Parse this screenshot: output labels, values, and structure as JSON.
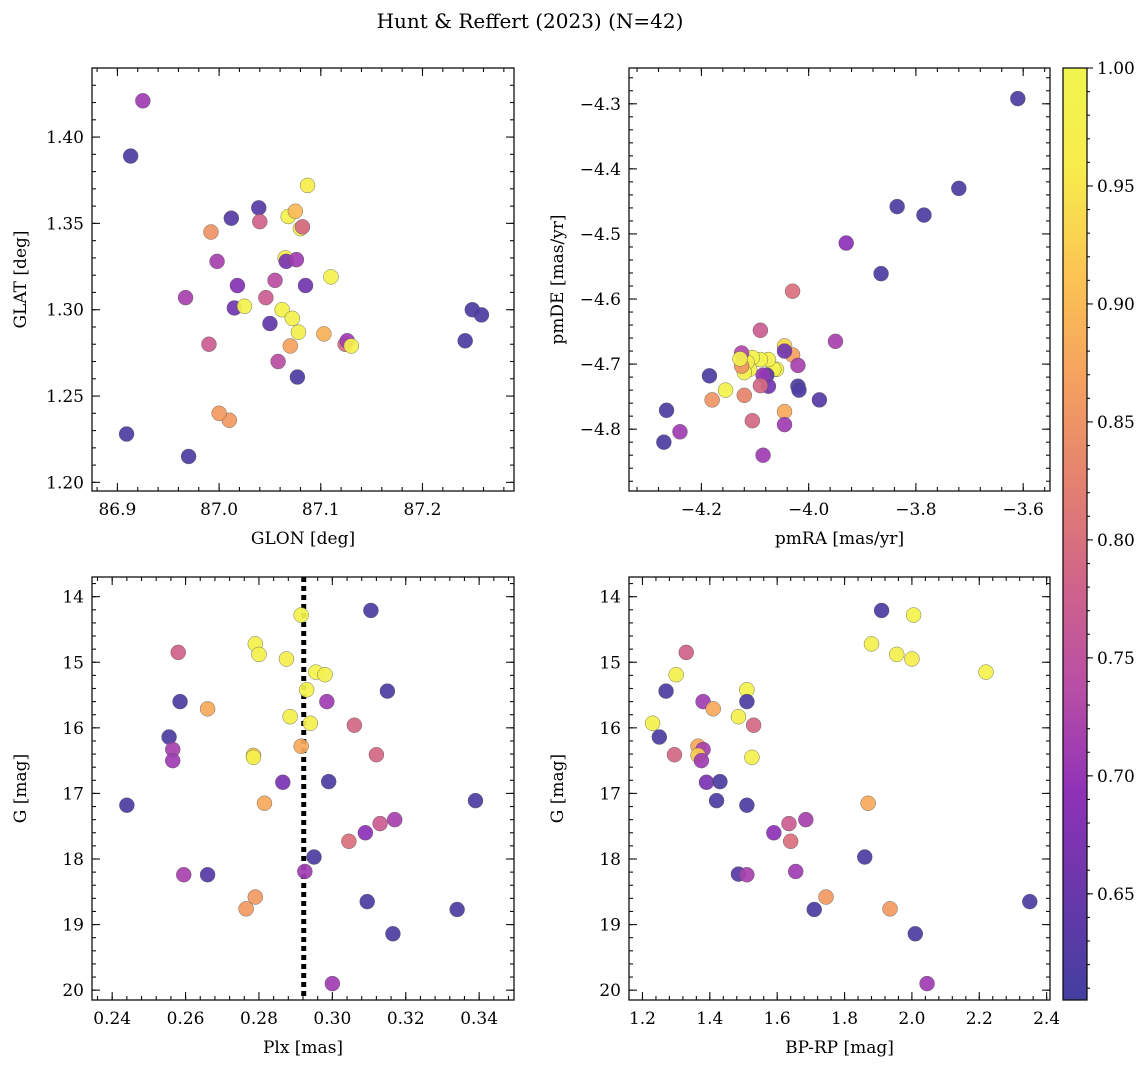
{
  "title": "Hunt & Reffert (2023) (N=42)",
  "colorbar": {
    "range": [
      0.605,
      1.0
    ],
    "tick_values": [
      0.65,
      0.7,
      0.75,
      0.8,
      0.85,
      0.9,
      0.95,
      1.0
    ],
    "tick_labels": [
      "0.65",
      "0.70",
      "0.75",
      "0.80",
      "0.85",
      "0.90",
      "0.95",
      "1.00"
    ],
    "colormap": "plasma",
    "colormap_stops": [
      "#423f9f",
      "#6838ab",
      "#8f32b8",
      "#b84ea6",
      "#d0638a",
      "#e4816f",
      "#f5a15f",
      "#fbc453",
      "#f7eb4c",
      "#f2f54e"
    ]
  },
  "chart_data": [
    {
      "type": "scatter",
      "xlabel": "GLON [deg]",
      "ylabel": "GLAT [deg]",
      "xlim": [
        86.875,
        87.29
      ],
      "ylim": [
        1.195,
        1.44
      ],
      "y_inverted": false,
      "xticks": [
        86.9,
        87.0,
        87.1,
        87.2
      ],
      "xtick_labels": [
        "86.9",
        "87.0",
        "87.1",
        "87.2"
      ],
      "xminor": 0.02,
      "yticks": [
        1.2,
        1.25,
        1.3,
        1.35,
        1.4
      ],
      "ytick_labels": [
        "1.20",
        "1.25",
        "1.30",
        "1.35",
        "1.40"
      ],
      "yminor": 0.01,
      "points": [
        {
          "x": 86.925,
          "y": 1.421,
          "c": 0.71
        },
        {
          "x": 86.913,
          "y": 1.389,
          "c": 0.62
        },
        {
          "x": 86.909,
          "y": 1.228,
          "c": 0.62
        },
        {
          "x": 86.97,
          "y": 1.215,
          "c": 0.62
        },
        {
          "x": 86.967,
          "y": 1.307,
          "c": 0.72
        },
        {
          "x": 86.99,
          "y": 1.28,
          "c": 0.77
        },
        {
          "x": 86.992,
          "y": 1.345,
          "c": 0.85
        },
        {
          "x": 86.998,
          "y": 1.328,
          "c": 0.72
        },
        {
          "x": 87.012,
          "y": 1.353,
          "c": 0.63
        },
        {
          "x": 87.015,
          "y": 1.301,
          "c": 0.66
        },
        {
          "x": 87.018,
          "y": 1.314,
          "c": 0.68
        },
        {
          "x": 87.01,
          "y": 1.236,
          "c": 0.86
        },
        {
          "x": 87.025,
          "y": 1.302,
          "c": 0.99
        },
        {
          "x": 87.039,
          "y": 1.359,
          "c": 0.63
        },
        {
          "x": 87.04,
          "y": 1.351,
          "c": 0.78
        },
        {
          "x": 87.046,
          "y": 1.307,
          "c": 0.77
        },
        {
          "x": 87.05,
          "y": 1.292,
          "c": 0.64
        },
        {
          "x": 87.055,
          "y": 1.317,
          "c": 0.74
        },
        {
          "x": 87.058,
          "y": 1.27,
          "c": 0.74
        },
        {
          "x": 87.062,
          "y": 1.3,
          "c": 0.99
        },
        {
          "x": 87.065,
          "y": 1.33,
          "c": 0.97
        },
        {
          "x": 87.066,
          "y": 1.328,
          "c": 0.67
        },
        {
          "x": 87.068,
          "y": 1.354,
          "c": 0.99
        },
        {
          "x": 87.07,
          "y": 1.279,
          "c": 0.87
        },
        {
          "x": 87.072,
          "y": 1.295,
          "c": 0.98
        },
        {
          "x": 87.075,
          "y": 1.357,
          "c": 0.9
        },
        {
          "x": 87.076,
          "y": 1.329,
          "c": 0.71
        },
        {
          "x": 87.077,
          "y": 1.261,
          "c": 0.62
        },
        {
          "x": 87.078,
          "y": 1.287,
          "c": 0.98
        },
        {
          "x": 87.08,
          "y": 1.347,
          "c": 0.98
        },
        {
          "x": 87.082,
          "y": 1.348,
          "c": 0.79
        },
        {
          "x": 87.085,
          "y": 1.314,
          "c": 0.66
        },
        {
          "x": 87.087,
          "y": 1.372,
          "c": 0.97
        },
        {
          "x": 87.103,
          "y": 1.286,
          "c": 0.89
        },
        {
          "x": 87.11,
          "y": 1.319,
          "c": 0.99
        },
        {
          "x": 87.124,
          "y": 1.28,
          "c": 0.79
        },
        {
          "x": 87.126,
          "y": 1.282,
          "c": 0.71
        },
        {
          "x": 87.13,
          "y": 1.279,
          "c": 0.98
        },
        {
          "x": 87.242,
          "y": 1.282,
          "c": 0.62
        },
        {
          "x": 87.249,
          "y": 1.3,
          "c": 0.62
        },
        {
          "x": 87.258,
          "y": 1.297,
          "c": 0.62
        },
        {
          "x": 87.0,
          "y": 1.24,
          "c": 0.86
        }
      ]
    },
    {
      "type": "scatter",
      "xlabel": "pmRA [mas/yr]",
      "ylabel": "pmDE [mas/yr]",
      "xlim": [
        -4.335,
        -3.55
      ],
      "ylim": [
        -4.895,
        -4.245
      ],
      "y_inverted": false,
      "xticks": [
        -4.2,
        -4.0,
        -3.8,
        -3.6
      ],
      "xtick_labels": [
        "−4.2",
        "−4.0",
        "−3.8",
        "−3.6"
      ],
      "xminor": 0.04,
      "yticks": [
        -4.8,
        -4.7,
        -4.6,
        -4.5,
        -4.4,
        -4.3
      ],
      "ytick_labels": [
        "−4.8",
        "−4.7",
        "−4.6",
        "−4.5",
        "−4.4",
        "−4.3"
      ],
      "yminor": 0.02,
      "points": [
        {
          "x": -3.61,
          "y": -4.292,
          "c": 0.62
        },
        {
          "x": -3.72,
          "y": -4.43,
          "c": 0.62
        },
        {
          "x": -3.785,
          "y": -4.471,
          "c": 0.62
        },
        {
          "x": -3.835,
          "y": -4.458,
          "c": 0.62
        },
        {
          "x": -3.865,
          "y": -4.561,
          "c": 0.62
        },
        {
          "x": -3.93,
          "y": -4.514,
          "c": 0.69
        },
        {
          "x": -3.95,
          "y": -4.665,
          "c": 0.72
        },
        {
          "x": -3.98,
          "y": -4.755,
          "c": 0.63
        },
        {
          "x": -4.03,
          "y": -4.588,
          "c": 0.8
        },
        {
          "x": -4.03,
          "y": -4.686,
          "c": 0.87
        },
        {
          "x": -4.02,
          "y": -4.702,
          "c": 0.72
        },
        {
          "x": -4.02,
          "y": -4.734,
          "c": 0.62
        },
        {
          "x": -4.018,
          "y": -4.74,
          "c": 0.62
        },
        {
          "x": -4.045,
          "y": -4.672,
          "c": 0.93
        },
        {
          "x": -4.045,
          "y": -4.68,
          "c": 0.66
        },
        {
          "x": -4.045,
          "y": -4.773,
          "c": 0.88
        },
        {
          "x": -4.045,
          "y": -4.793,
          "c": 0.71
        },
        {
          "x": -4.06,
          "y": -4.708,
          "c": 0.99
        },
        {
          "x": -4.065,
          "y": -4.708,
          "c": 0.98
        },
        {
          "x": -4.075,
          "y": -4.693,
          "c": 0.98
        },
        {
          "x": -4.078,
          "y": -4.717,
          "c": 0.63
        },
        {
          "x": -4.075,
          "y": -4.734,
          "c": 0.66
        },
        {
          "x": -4.085,
          "y": -4.717,
          "c": 0.7
        },
        {
          "x": -4.085,
          "y": -4.84,
          "c": 0.71
        },
        {
          "x": -4.09,
          "y": -4.648,
          "c": 0.77
        },
        {
          "x": -4.09,
          "y": -4.693,
          "c": 0.99
        },
        {
          "x": -4.09,
          "y": -4.733,
          "c": 0.79
        },
        {
          "x": -4.105,
          "y": -4.69,
          "c": 0.99
        },
        {
          "x": -4.105,
          "y": -4.787,
          "c": 0.79
        },
        {
          "x": -4.11,
          "y": -4.708,
          "c": 0.98
        },
        {
          "x": -4.115,
          "y": -4.697,
          "c": 0.97
        },
        {
          "x": -4.12,
          "y": -4.713,
          "c": 0.98
        },
        {
          "x": -4.12,
          "y": -4.748,
          "c": 0.83
        },
        {
          "x": -4.125,
          "y": -4.703,
          "c": 0.85
        },
        {
          "x": -4.125,
          "y": -4.683,
          "c": 0.73
        },
        {
          "x": -4.128,
          "y": -4.692,
          "c": 0.98
        },
        {
          "x": -4.155,
          "y": -4.74,
          "c": 0.99
        },
        {
          "x": -4.18,
          "y": -4.755,
          "c": 0.85
        },
        {
          "x": -4.185,
          "y": -4.718,
          "c": 0.62
        },
        {
          "x": -4.24,
          "y": -4.804,
          "c": 0.71
        },
        {
          "x": -4.265,
          "y": -4.771,
          "c": 0.62
        },
        {
          "x": -4.27,
          "y": -4.82,
          "c": 0.62
        }
      ]
    },
    {
      "type": "scatter",
      "xlabel": "Plx [mas]",
      "ylabel": "G [mag]",
      "xlim": [
        0.2345,
        0.3495
      ],
      "ylim": [
        13.7,
        20.15
      ],
      "y_inverted": true,
      "xticks": [
        0.24,
        0.26,
        0.28,
        0.3,
        0.32,
        0.34
      ],
      "xtick_labels": [
        "0.24",
        "0.26",
        "0.28",
        "0.30",
        "0.32",
        "0.34"
      ],
      "xminor": 0.004,
      "yticks": [
        14,
        15,
        16,
        17,
        18,
        19,
        20
      ],
      "ytick_labels": [
        "14",
        "15",
        "16",
        "17",
        "18",
        "19",
        "20"
      ],
      "yminor": 0.2,
      "reference_line": {
        "x": 0.2922,
        "style": "dotted"
      },
      "points": [
        {
          "x": 0.2915,
          "y": 14.28,
          "c": 0.99
        },
        {
          "x": 0.279,
          "y": 14.72,
          "c": 0.98
        },
        {
          "x": 0.28,
          "y": 14.88,
          "c": 0.98
        },
        {
          "x": 0.2875,
          "y": 14.95,
          "c": 0.97
        },
        {
          "x": 0.2955,
          "y": 15.15,
          "c": 0.99
        },
        {
          "x": 0.298,
          "y": 15.19,
          "c": 0.98
        },
        {
          "x": 0.293,
          "y": 15.42,
          "c": 0.99
        },
        {
          "x": 0.3105,
          "y": 14.21,
          "c": 0.62
        },
        {
          "x": 0.258,
          "y": 14.85,
          "c": 0.78
        },
        {
          "x": 0.315,
          "y": 15.44,
          "c": 0.62
        },
        {
          "x": 0.2585,
          "y": 15.6,
          "c": 0.62
        },
        {
          "x": 0.2985,
          "y": 15.6,
          "c": 0.71
        },
        {
          "x": 0.266,
          "y": 15.71,
          "c": 0.88
        },
        {
          "x": 0.2885,
          "y": 15.83,
          "c": 0.98
        },
        {
          "x": 0.294,
          "y": 15.93,
          "c": 0.98
        },
        {
          "x": 0.306,
          "y": 15.96,
          "c": 0.79
        },
        {
          "x": 0.2555,
          "y": 16.14,
          "c": 0.62
        },
        {
          "x": 0.2915,
          "y": 16.28,
          "c": 0.88
        },
        {
          "x": 0.2565,
          "y": 16.33,
          "c": 0.72
        },
        {
          "x": 0.312,
          "y": 16.41,
          "c": 0.79
        },
        {
          "x": 0.2785,
          "y": 16.42,
          "c": 0.92
        },
        {
          "x": 0.2785,
          "y": 16.45,
          "c": 0.98
        },
        {
          "x": 0.2565,
          "y": 16.5,
          "c": 0.71
        },
        {
          "x": 0.2865,
          "y": 16.83,
          "c": 0.67
        },
        {
          "x": 0.299,
          "y": 16.82,
          "c": 0.62
        },
        {
          "x": 0.244,
          "y": 17.18,
          "c": 0.62
        },
        {
          "x": 0.2815,
          "y": 17.15,
          "c": 0.88
        },
        {
          "x": 0.339,
          "y": 17.11,
          "c": 0.62
        },
        {
          "x": 0.317,
          "y": 17.4,
          "c": 0.72
        },
        {
          "x": 0.313,
          "y": 17.46,
          "c": 0.77
        },
        {
          "x": 0.309,
          "y": 17.6,
          "c": 0.69
        },
        {
          "x": 0.3045,
          "y": 17.73,
          "c": 0.8
        },
        {
          "x": 0.295,
          "y": 17.97,
          "c": 0.62
        },
        {
          "x": 0.2925,
          "y": 18.19,
          "c": 0.71
        },
        {
          "x": 0.2595,
          "y": 18.24,
          "c": 0.72
        },
        {
          "x": 0.266,
          "y": 18.24,
          "c": 0.63
        },
        {
          "x": 0.279,
          "y": 18.58,
          "c": 0.86
        },
        {
          "x": 0.3095,
          "y": 18.65,
          "c": 0.62
        },
        {
          "x": 0.2765,
          "y": 18.76,
          "c": 0.86
        },
        {
          "x": 0.334,
          "y": 18.77,
          "c": 0.62
        },
        {
          "x": 0.3165,
          "y": 19.14,
          "c": 0.62
        },
        {
          "x": 0.3,
          "y": 19.9,
          "c": 0.71
        }
      ]
    },
    {
      "type": "scatter",
      "xlabel": "BP-RP [mag]",
      "ylabel": "G [mag]",
      "xlim": [
        1.16,
        2.41
      ],
      "ylim": [
        13.7,
        20.15
      ],
      "y_inverted": true,
      "xticks": [
        1.2,
        1.4,
        1.6,
        1.8,
        2.0,
        2.2,
        2.4
      ],
      "xtick_labels": [
        "1.2",
        "1.4",
        "1.6",
        "1.8",
        "2.0",
        "2.2",
        "2.4"
      ],
      "xminor": 0.04,
      "yticks": [
        14,
        15,
        16,
        17,
        18,
        19,
        20
      ],
      "ytick_labels": [
        "14",
        "15",
        "16",
        "17",
        "18",
        "19",
        "20"
      ],
      "yminor": 0.2,
      "points": [
        {
          "x": 1.91,
          "y": 14.21,
          "c": 0.62
        },
        {
          "x": 2.005,
          "y": 14.28,
          "c": 0.99
        },
        {
          "x": 1.88,
          "y": 14.72,
          "c": 0.98
        },
        {
          "x": 1.955,
          "y": 14.88,
          "c": 0.98
        },
        {
          "x": 2.0,
          "y": 14.95,
          "c": 0.97
        },
        {
          "x": 2.22,
          "y": 15.15,
          "c": 0.99
        },
        {
          "x": 1.33,
          "y": 14.85,
          "c": 0.78
        },
        {
          "x": 1.3,
          "y": 15.19,
          "c": 0.98
        },
        {
          "x": 1.27,
          "y": 15.44,
          "c": 0.62
        },
        {
          "x": 1.51,
          "y": 15.42,
          "c": 0.99
        },
        {
          "x": 1.51,
          "y": 15.6,
          "c": 0.62
        },
        {
          "x": 1.38,
          "y": 15.6,
          "c": 0.71
        },
        {
          "x": 1.41,
          "y": 15.71,
          "c": 0.88
        },
        {
          "x": 1.485,
          "y": 15.83,
          "c": 0.98
        },
        {
          "x": 1.23,
          "y": 15.93,
          "c": 0.98
        },
        {
          "x": 1.53,
          "y": 15.96,
          "c": 0.79
        },
        {
          "x": 1.25,
          "y": 16.14,
          "c": 0.62
        },
        {
          "x": 1.365,
          "y": 16.28,
          "c": 0.88
        },
        {
          "x": 1.38,
          "y": 16.33,
          "c": 0.72
        },
        {
          "x": 1.295,
          "y": 16.41,
          "c": 0.79
        },
        {
          "x": 1.365,
          "y": 16.42,
          "c": 0.92
        },
        {
          "x": 1.525,
          "y": 16.45,
          "c": 0.98
        },
        {
          "x": 1.375,
          "y": 16.5,
          "c": 0.71
        },
        {
          "x": 1.39,
          "y": 16.83,
          "c": 0.67
        },
        {
          "x": 1.43,
          "y": 16.82,
          "c": 0.62
        },
        {
          "x": 1.42,
          "y": 17.11,
          "c": 0.62
        },
        {
          "x": 1.51,
          "y": 17.18,
          "c": 0.62
        },
        {
          "x": 1.87,
          "y": 17.15,
          "c": 0.88
        },
        {
          "x": 1.685,
          "y": 17.4,
          "c": 0.72
        },
        {
          "x": 1.635,
          "y": 17.46,
          "c": 0.77
        },
        {
          "x": 1.59,
          "y": 17.6,
          "c": 0.69
        },
        {
          "x": 1.64,
          "y": 17.73,
          "c": 0.8
        },
        {
          "x": 1.86,
          "y": 17.97,
          "c": 0.62
        },
        {
          "x": 1.655,
          "y": 18.19,
          "c": 0.71
        },
        {
          "x": 1.485,
          "y": 18.23,
          "c": 0.63
        },
        {
          "x": 1.51,
          "y": 18.24,
          "c": 0.72
        },
        {
          "x": 1.745,
          "y": 18.58,
          "c": 0.86
        },
        {
          "x": 2.35,
          "y": 18.65,
          "c": 0.62
        },
        {
          "x": 1.935,
          "y": 18.76,
          "c": 0.86
        },
        {
          "x": 1.71,
          "y": 18.77,
          "c": 0.62
        },
        {
          "x": 2.01,
          "y": 19.14,
          "c": 0.62
        },
        {
          "x": 2.045,
          "y": 19.9,
          "c": 0.71
        }
      ]
    }
  ]
}
